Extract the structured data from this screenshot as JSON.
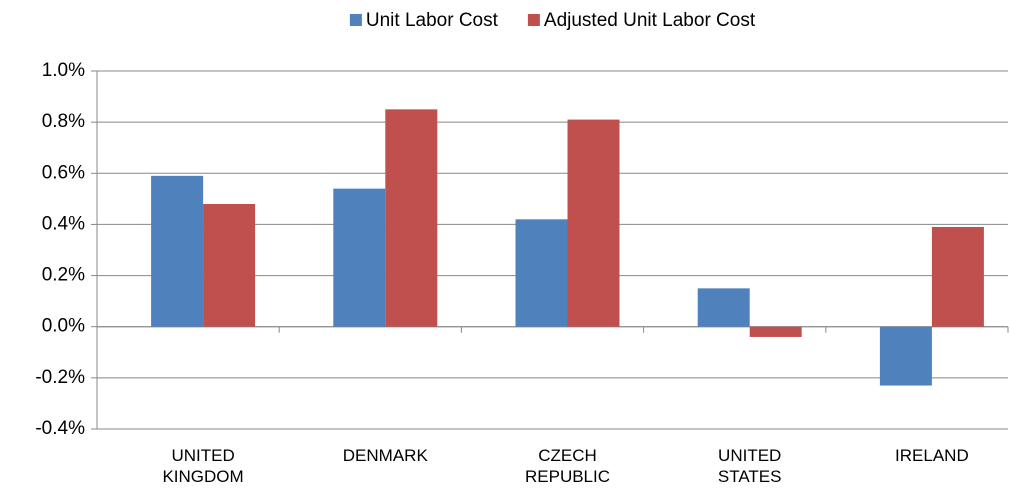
{
  "chart_data": {
    "type": "bar",
    "categories": [
      "UNITED KINGDOM",
      "DENMARK",
      "CZECH REPUBLIC",
      "UNITED STATES",
      "IRELAND"
    ],
    "series": [
      {
        "name": "Unit Labor Cost",
        "color": "#4f81bd",
        "values": [
          0.59,
          0.54,
          0.42,
          0.15,
          -0.23
        ]
      },
      {
        "name": "Adjusted Unit Labor Cost",
        "color": "#c0504d",
        "values": [
          0.48,
          0.85,
          0.81,
          -0.04,
          0.39
        ]
      }
    ],
    "ylim": [
      -0.4,
      1.0
    ],
    "yticks": [
      {
        "value": -0.4,
        "label": "-0.4%"
      },
      {
        "value": -0.2,
        "label": "-0.2%"
      },
      {
        "value": 0.0,
        "label": "0.0%"
      },
      {
        "value": 0.2,
        "label": "0.2%"
      },
      {
        "value": 0.4,
        "label": "0.4%"
      },
      {
        "value": 0.6,
        "label": "0.6%"
      },
      {
        "value": 0.8,
        "label": "0.8%"
      },
      {
        "value": 1.0,
        "label": "1.0%"
      }
    ],
    "grid": true,
    "legend": "top"
  }
}
